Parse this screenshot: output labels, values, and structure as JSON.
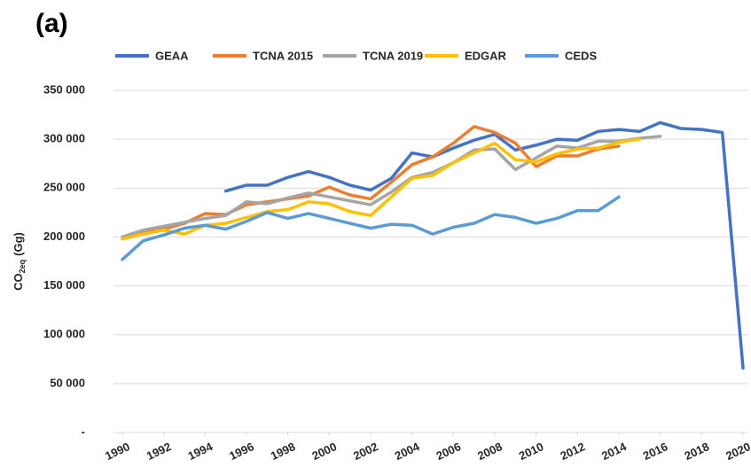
{
  "chart_data": {
    "type": "line",
    "title": "(a)",
    "y_label": "CO",
    "y_label_sub": "2eq",
    "y_label_unit": "(Gg)",
    "x": [
      1990,
      1991,
      1992,
      1993,
      1994,
      1995,
      1996,
      1997,
      1998,
      1999,
      2000,
      2001,
      2002,
      2003,
      2004,
      2005,
      2006,
      2007,
      2008,
      2009,
      2010,
      2011,
      2012,
      2013,
      2014,
      2015,
      2016,
      2017,
      2018,
      2019,
      2020
    ],
    "xlim": [
      1990,
      2020
    ],
    "xticks": [
      1990,
      1992,
      1994,
      1996,
      1998,
      2000,
      2002,
      2004,
      2006,
      2008,
      2010,
      2012,
      2014,
      2016,
      2018,
      2020
    ],
    "ylim": [
      0,
      350000
    ],
    "yticks": [
      {
        "value": 0,
        "label": "-"
      },
      {
        "value": 50000,
        "label": "50 000"
      },
      {
        "value": 100000,
        "label": "100 000"
      },
      {
        "value": 150000,
        "label": "150 000"
      },
      {
        "value": 200000,
        "label": "200 000"
      },
      {
        "value": 250000,
        "label": "250 000"
      },
      {
        "value": 300000,
        "label": "300 000"
      },
      {
        "value": 350000,
        "label": "350 000"
      }
    ],
    "grid": true,
    "legend": "top",
    "series": [
      {
        "name": "GEAA",
        "color": "#4472c4",
        "values": [
          null,
          null,
          null,
          null,
          null,
          247000,
          253000,
          253000,
          261000,
          267000,
          261000,
          253000,
          248000,
          260000,
          286000,
          282000,
          291000,
          299000,
          305000,
          289000,
          294000,
          300000,
          299000,
          308000,
          310000,
          308000,
          317000,
          311000,
          310000,
          307000,
          66000
        ]
      },
      {
        "name": "TCNA 2015",
        "color": "#ed7d31",
        "values": [
          198000,
          204000,
          208000,
          214000,
          224000,
          223000,
          233000,
          236000,
          239000,
          242000,
          251000,
          243000,
          239000,
          256000,
          274000,
          282000,
          296000,
          313000,
          307000,
          296000,
          272000,
          283000,
          283000,
          290000,
          293000,
          null,
          null,
          null,
          null,
          null,
          null
        ]
      },
      {
        "name": "TCNA 2019",
        "color": "#a5a5a5",
        "values": [
          200000,
          207000,
          211000,
          215000,
          219000,
          222000,
          236000,
          234000,
          240000,
          245000,
          241000,
          237000,
          233000,
          246000,
          261000,
          266000,
          276000,
          289000,
          290000,
          269000,
          281000,
          293000,
          291000,
          298000,
          298000,
          301000,
          303000,
          null,
          null,
          null,
          null
        ]
      },
      {
        "name": "EDGAR",
        "color": "#ffc000",
        "values": [
          198000,
          203000,
          207000,
          203000,
          212000,
          214000,
          220000,
          226000,
          228000,
          236000,
          234000,
          226000,
          222000,
          241000,
          260000,
          263000,
          276000,
          286000,
          296000,
          279000,
          277000,
          285000,
          290000,
          291000,
          297000,
          300000,
          null,
          null,
          null,
          null,
          null
        ]
      },
      {
        "name": "CEDS",
        "color": "#5b9bd5",
        "values": [
          177000,
          196000,
          202000,
          209000,
          212000,
          208000,
          216000,
          225000,
          219000,
          224000,
          219000,
          214000,
          209000,
          213000,
          212000,
          203000,
          210000,
          214000,
          223000,
          220000,
          214000,
          219000,
          227000,
          227000,
          241000,
          null,
          null,
          null,
          null,
          null,
          null
        ]
      }
    ]
  }
}
